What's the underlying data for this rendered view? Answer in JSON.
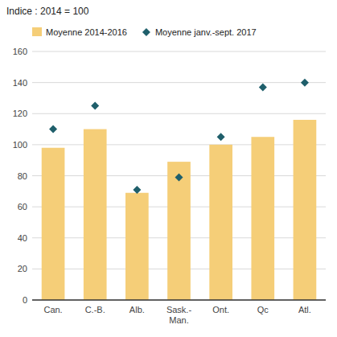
{
  "chart_data": {
    "type": "bar",
    "ylabel": "Indice : 2014 = 100",
    "categories": [
      "Can.",
      "C.-B.",
      "Alb.",
      "Sask.-\nMan.",
      "Ont.",
      "Qc",
      "Atl."
    ],
    "series": [
      {
        "name": "Moyenne 2014-2016",
        "type": "bar",
        "color": "#F5CE78",
        "values": [
          98,
          110,
          69,
          89,
          100,
          105,
          116
        ]
      },
      {
        "name": "Moyenne janv.-sept. 2017",
        "type": "scatter",
        "marker": "diamond",
        "color": "#1F5F6B",
        "values": [
          110,
          125,
          71,
          79,
          105,
          137,
          140
        ]
      }
    ],
    "ylim": [
      0,
      160
    ],
    "yticks": [
      0,
      20,
      40,
      60,
      80,
      100,
      120,
      140,
      160
    ],
    "grid": true,
    "legend": "upper left"
  }
}
